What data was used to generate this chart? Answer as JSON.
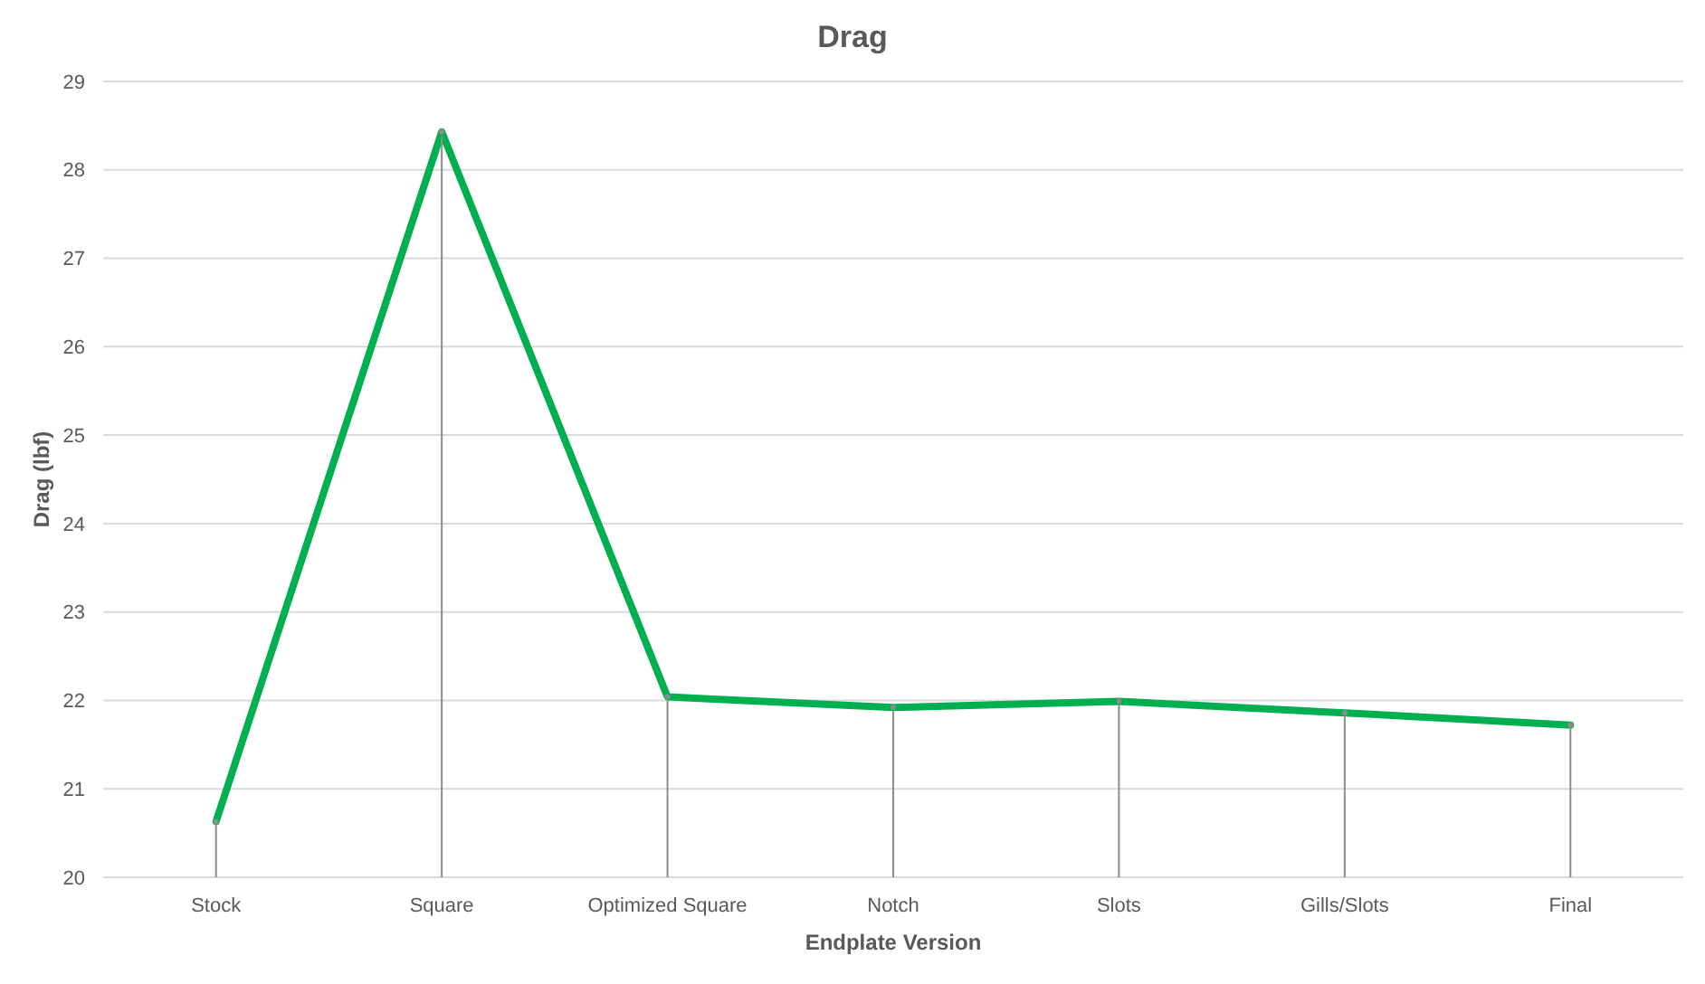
{
  "chart_data": {
    "type": "line",
    "title": "Drag",
    "xlabel": "Endplate Version",
    "ylabel": "Drag (lbf)",
    "categories": [
      "Stock",
      "Square",
      "Optimized Square",
      "Notch",
      "Slots",
      "Gills/Slots",
      "Final"
    ],
    "series": [
      {
        "color": "#00b050",
        "values": [
          20.63,
          28.43,
          22.04,
          21.92,
          21.99,
          21.86,
          21.72
        ]
      },
      {
        "type": "lollipop",
        "marker": "circle",
        "color": "#8c8c8c",
        "values": [
          20.63,
          28.43,
          22.04,
          21.92,
          21.99,
          21.86,
          21.72
        ]
      }
    ],
    "ylim": [
      20,
      29
    ],
    "yticks": [
      20,
      21,
      22,
      23,
      24,
      25,
      26,
      27,
      28,
      29
    ],
    "grid": "y",
    "marker": "none",
    "line_style": "solid"
  }
}
